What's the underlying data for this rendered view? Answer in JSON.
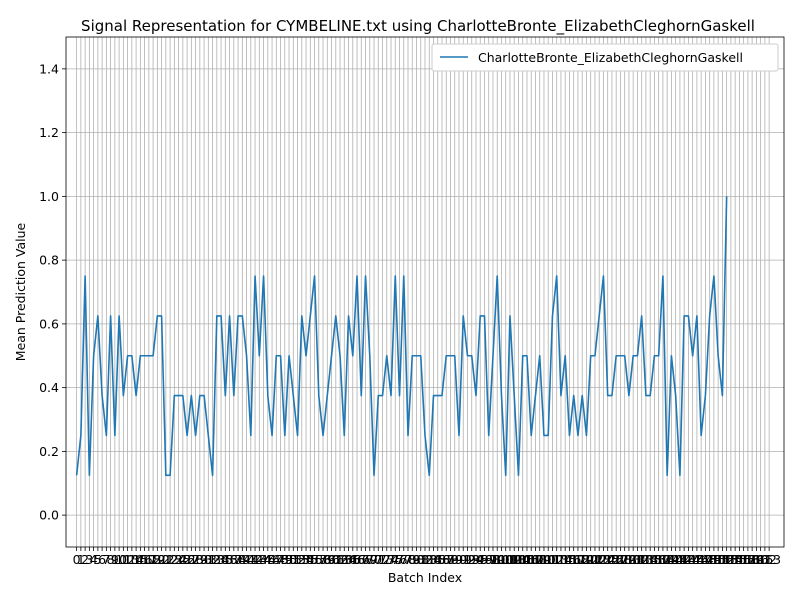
{
  "chart_data": {
    "type": "line",
    "title": "Signal Representation for CYMBELINE.txt using CharlotteBronte_ElizabethCleghornGaskell",
    "xlabel": "Batch Index",
    "ylabel": "Mean Prediction Value",
    "xlim": [
      -2.5,
      166.5
    ],
    "ylim": [
      -0.1,
      1.5
    ],
    "yticks": [
      0.0,
      0.2,
      0.4,
      0.6,
      0.8,
      1.0,
      1.2,
      1.4
    ],
    "ytick_labels": [
      "0.0",
      "0.2",
      "0.4",
      "0.6",
      "0.8",
      "1.0",
      "1.2",
      "1.4"
    ],
    "xtick_count": 164,
    "grid": true,
    "legend_position": "top-right",
    "colors": {
      "line": "#1f77b4",
      "grid": "#b0b0b0"
    },
    "series": [
      {
        "name": "CharlotteBronte_ElizabethCleghornGaskell",
        "values": [
          0.125,
          0.25,
          0.75,
          0.125,
          0.5,
          0.625,
          0.375,
          0.25,
          0.625,
          0.25,
          0.625,
          0.375,
          0.5,
          0.5,
          0.375,
          0.5,
          0.5,
          0.5,
          0.5,
          0.625,
          0.625,
          0.125,
          0.125,
          0.375,
          0.375,
          0.375,
          0.25,
          0.375,
          0.25,
          0.375,
          0.375,
          0.25,
          0.125,
          0.625,
          0.625,
          0.375,
          0.625,
          0.375,
          0.625,
          0.625,
          0.5,
          0.25,
          0.75,
          0.5,
          0.75,
          0.375,
          0.25,
          0.5,
          0.5,
          0.25,
          0.5,
          0.375,
          0.25,
          0.625,
          0.5,
          0.625,
          0.75,
          0.375,
          0.25,
          0.375,
          0.5,
          0.625,
          0.5,
          0.25,
          0.625,
          0.5,
          0.75,
          0.375,
          0.75,
          0.5,
          0.125,
          0.375,
          0.375,
          0.5,
          0.375,
          0.75,
          0.375,
          0.75,
          0.25,
          0.5,
          0.5,
          0.5,
          0.25,
          0.125,
          0.375,
          0.375,
          0.375,
          0.5,
          0.5,
          0.5,
          0.25,
          0.625,
          0.5,
          0.5,
          0.375,
          0.625,
          0.625,
          0.25,
          0.5,
          0.75,
          0.375,
          0.125,
          0.625,
          0.375,
          0.125,
          0.5,
          0.5,
          0.25,
          0.375,
          0.5,
          0.25,
          0.25,
          0.625,
          0.75,
          0.375,
          0.5,
          0.25,
          0.375,
          0.25,
          0.375,
          0.25,
          0.5,
          0.5,
          0.625,
          0.75,
          0.375,
          0.375,
          0.5,
          0.5,
          0.5,
          0.375,
          0.5,
          0.5,
          0.625,
          0.375,
          0.375,
          0.5,
          0.5,
          0.75,
          0.125,
          0.5,
          0.375,
          0.125,
          0.625,
          0.625,
          0.5,
          0.625,
          0.25,
          0.375,
          0.625,
          0.75,
          0.5,
          0.375,
          1.0
        ]
      }
    ]
  }
}
